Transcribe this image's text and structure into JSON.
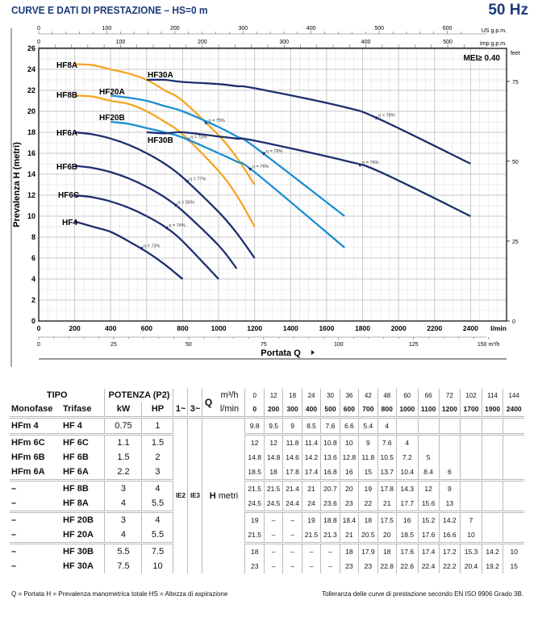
{
  "header": {
    "title": "CURVE E DATI DI PRESTAZIONE  –  HS=0 m",
    "frequency": "50 Hz"
  },
  "chart_data": {
    "type": "line",
    "ylabel": "Prevalenza  H  (metri)",
    "xlabel": "Portata  Q",
    "xunit": "l/min",
    "x2unit": "m³/h",
    "top1unit": "US g.p.m.",
    "top2unit": "Imp g.p.m.",
    "y2unit": "feet",
    "xlim": [
      0,
      2600
    ],
    "ylim": [
      0,
      26
    ],
    "xticks": [
      0,
      200,
      400,
      600,
      800,
      1000,
      1200,
      1400,
      1600,
      1800,
      2000,
      2200,
      2400
    ],
    "yticks": [
      0,
      2,
      4,
      6,
      8,
      10,
      12,
      14,
      16,
      18,
      20,
      22,
      24,
      26
    ],
    "x2ticks": [
      0,
      25,
      50,
      75,
      100,
      125,
      150
    ],
    "usgpm_ticks": [
      0,
      100,
      200,
      300,
      400,
      500,
      600
    ],
    "impgpm_ticks": [
      0,
      100,
      200,
      300,
      400,
      500
    ],
    "feet_ticks": [
      0,
      25,
      50,
      75
    ],
    "annotation": "MEI≥ 0.40",
    "grid": true,
    "series": [
      {
        "name": "HF8A",
        "color": "#f5a623",
        "x": [
          200,
          300,
          400,
          500,
          600,
          700,
          800,
          1000,
          1100,
          1200
        ],
        "y": [
          24.5,
          24.4,
          24,
          23.6,
          23,
          22,
          21,
          17.7,
          15.6,
          13
        ],
        "eta": "η = 75%",
        "eta_x": 930
      },
      {
        "name": "HF8B",
        "color": "#f5a623",
        "x": [
          200,
          300,
          400,
          500,
          600,
          700,
          800,
          1000,
          1100,
          1200
        ],
        "y": [
          21.5,
          21.4,
          21,
          20.7,
          20,
          19,
          17.8,
          14.3,
          12,
          9
        ],
        "eta": "η = 73%",
        "eta_x": 830
      },
      {
        "name": "HF20A",
        "color": "#1b8fd2",
        "x": [
          400,
          500,
          600,
          700,
          800,
          1000,
          1100,
          1200,
          1700
        ],
        "y": [
          21.5,
          21.3,
          21,
          20.5,
          20,
          18.5,
          17.6,
          16.6,
          10
        ],
        "eta": "η = 79%",
        "eta_x": 1250
      },
      {
        "name": "HF20B",
        "color": "#1b8fd2",
        "x": [
          400,
          500,
          600,
          700,
          800,
          1000,
          1100,
          1200,
          1700
        ],
        "y": [
          19,
          18.8,
          18.4,
          18,
          17.5,
          16,
          15.2,
          14.2,
          7
        ],
        "eta": "η = 76%",
        "eta_x": 1175
      },
      {
        "name": "HF30A",
        "color": "#1d2f6f",
        "x": [
          600,
          700,
          800,
          1000,
          1100,
          1200,
          1700,
          1900,
          2400
        ],
        "y": [
          23,
          23,
          22.8,
          22.6,
          22.4,
          22.2,
          20.4,
          19.2,
          15
        ],
        "eta": "η = 78%",
        "eta_x": 1875
      },
      {
        "name": "HF30B",
        "color": "#1d2f6f",
        "x": [
          600,
          700,
          800,
          1000,
          1100,
          1200,
          1700,
          1900,
          2400
        ],
        "y": [
          18,
          17.9,
          18,
          17.6,
          17.4,
          17.2,
          15.3,
          14.2,
          10
        ],
        "eta": "η = 76%",
        "eta_x": 1785
      },
      {
        "name": "HF6A",
        "color": "#1d2f6f",
        "x": [
          200,
          300,
          400,
          500,
          600,
          700,
          800,
          1000,
          1100,
          1200
        ],
        "y": [
          18,
          17.8,
          17.4,
          16.8,
          16,
          15,
          13.7,
          10.4,
          8.4,
          6
        ],
        "eta": "η = 77%",
        "eta_x": 825
      },
      {
        "name": "HF6B",
        "color": "#1d2f6f",
        "x": [
          200,
          300,
          400,
          500,
          600,
          700,
          800,
          1000,
          1100
        ],
        "y": [
          14.8,
          14.6,
          14.2,
          13.6,
          12.8,
          11.8,
          10.5,
          7.2,
          5
        ],
        "eta": "η = 55%",
        "eta_x": 760
      },
      {
        "name": "HF6C",
        "color": "#1d2f6f",
        "x": [
          200,
          300,
          400,
          500,
          600,
          700,
          800,
          1000
        ],
        "y": [
          12,
          11.8,
          11.4,
          10.8,
          10,
          9,
          7.6,
          4
        ],
        "eta": "η = 74%",
        "eta_x": 710
      },
      {
        "name": "HF4",
        "color": "#1d2f6f",
        "x": [
          200,
          300,
          400,
          500,
          600,
          700,
          800
        ],
        "y": [
          9.5,
          9,
          8.5,
          7.6,
          6.6,
          5.4,
          4
        ],
        "eta": "η = 73%",
        "eta_x": 570
      }
    ]
  },
  "table": {
    "h_tipo": "TIPO",
    "h_potenza": "POTENZA (P2)",
    "h_mono": "Monofase",
    "h_tri": "Trifase",
    "h_kw": "kW",
    "h_hp": "HP",
    "h_1": "1~",
    "h_3": "3~",
    "h_q": "Q",
    "h_m3h": "m³/h",
    "h_lmin": "l/min",
    "ie2": "IE2",
    "ie3": "IE3",
    "h_h": "H",
    "h_metri": "metri",
    "m3h": [
      "0",
      "12",
      "18",
      "24",
      "30",
      "36",
      "42",
      "48",
      "60",
      "66",
      "72",
      "102",
      "114",
      "144"
    ],
    "lmin": [
      "0",
      "200",
      "300",
      "400",
      "500",
      "600",
      "700",
      "800",
      "1000",
      "1100",
      "1200",
      "1700",
      "1900",
      "2400"
    ],
    "rows": [
      {
        "mono": "HFm 4",
        "tri": "HF 4",
        "kw": "0.75",
        "hp": "1",
        "h": [
          "9.8",
          "9.5",
          "9",
          "8.5",
          "7.6",
          "6.6",
          "5.4",
          "4",
          "",
          "",
          "",
          "",
          "",
          ""
        ]
      },
      {
        "mono": "HFm 6C",
        "tri": "HF 6C",
        "kw": "1.1",
        "hp": "1.5",
        "h": [
          "12",
          "12",
          "11.8",
          "11.4",
          "10.8",
          "10",
          "9",
          "7.6",
          "4",
          "",
          "",
          "",
          "",
          ""
        ]
      },
      {
        "mono": "HFm 6B",
        "tri": "HF 6B",
        "kw": "1.5",
        "hp": "2",
        "h": [
          "14.8",
          "14.8",
          "14.6",
          "14.2",
          "13.6",
          "12.8",
          "11.8",
          "10.5",
          "7.2",
          "5",
          "",
          "",
          "",
          ""
        ]
      },
      {
        "mono": "HFm 6A",
        "tri": "HF 6A",
        "kw": "2.2",
        "hp": "3",
        "h": [
          "18.5",
          "18",
          "17.8",
          "17.4",
          "16.8",
          "16",
          "15",
          "13.7",
          "10.4",
          "8.4",
          "6",
          "",
          "",
          ""
        ]
      },
      {
        "mono": "–",
        "tri": "HF 8B",
        "kw": "3",
        "hp": "4",
        "h": [
          "21.5",
          "21.5",
          "21.4",
          "21",
          "20.7",
          "20",
          "19",
          "17.8",
          "14.3",
          "12",
          "9",
          "",
          "",
          ""
        ]
      },
      {
        "mono": "–",
        "tri": "HF 8A",
        "kw": "4",
        "hp": "5.5",
        "h": [
          "24.5",
          "24.5",
          "24.4",
          "24",
          "23.6",
          "23",
          "22",
          "21",
          "17.7",
          "15.6",
          "13",
          "",
          "",
          ""
        ]
      },
      {
        "mono": "–",
        "tri": "HF 20B",
        "kw": "3",
        "hp": "4",
        "h": [
          "19",
          "–",
          "–",
          "19",
          "18.8",
          "18.4",
          "18",
          "17.5",
          "16",
          "15.2",
          "14.2",
          "7",
          "",
          ""
        ]
      },
      {
        "mono": "–",
        "tri": "HF 20A",
        "kw": "4",
        "hp": "5.5",
        "h": [
          "21.5",
          "–",
          "–",
          "21.5",
          "21.3",
          "21",
          "20.5",
          "20",
          "18.5",
          "17.6",
          "16.6",
          "10",
          "",
          ""
        ]
      },
      {
        "mono": "–",
        "tri": "HF 30B",
        "kw": "5.5",
        "hp": "7.5",
        "h": [
          "18",
          "–",
          "–",
          "–",
          "–",
          "18",
          "17.9",
          "18",
          "17.6",
          "17.4",
          "17.2",
          "15.3",
          "14.2",
          "10"
        ]
      },
      {
        "mono": "–",
        "tri": "HF 30A",
        "kw": "7.5",
        "hp": "10",
        "h": [
          "23",
          "–",
          "–",
          "–",
          "–",
          "23",
          "23",
          "22.8",
          "22.6",
          "22.4",
          "22.2",
          "20.4",
          "19.2",
          "15"
        ]
      }
    ]
  },
  "footer": {
    "legend": "Q = Portata   H = Prevalenza manometrica totale   HS = Altezza di aspirazione",
    "tolerance": "Tolleranza delle curve di prestazione secondo EN ISO 9906 Grado 3B."
  }
}
